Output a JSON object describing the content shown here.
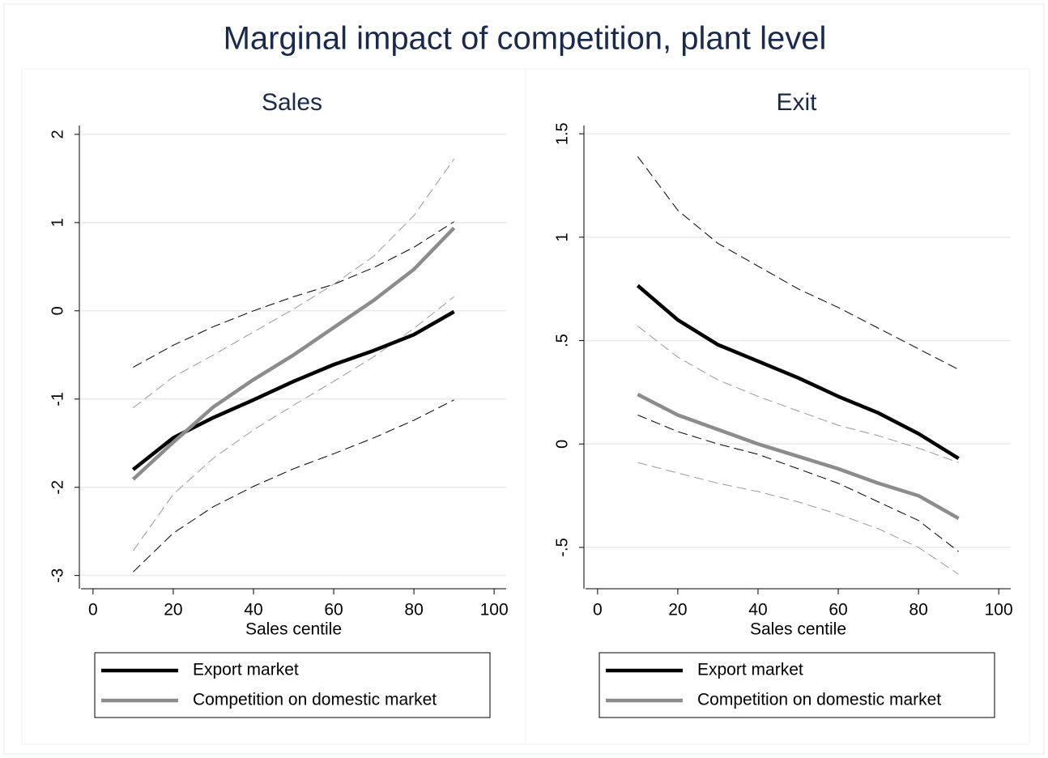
{
  "title": "Marginal impact of competition, plant level",
  "chart_data": [
    {
      "type": "line",
      "title": "Sales",
      "x_label": "Sales centile",
      "x": [
        10,
        20,
        30,
        40,
        50,
        60,
        70,
        80,
        90
      ],
      "xlim": [
        -3,
        103
      ],
      "xticks": [
        0,
        20,
        40,
        60,
        80,
        100
      ],
      "ylim": [
        -3.15,
        2.1
      ],
      "yticks": [
        -3,
        -2,
        -1,
        0,
        1,
        2
      ],
      "grid": true,
      "series": [
        {
          "color": "#000000",
          "dashed": true,
          "values": [
            -0.64,
            -0.39,
            -0.18,
            0.0,
            0.16,
            0.3,
            0.49,
            0.72,
            1.01
          ]
        },
        {
          "color": "#000000",
          "dashed": true,
          "values": [
            -2.96,
            -2.52,
            -2.22,
            -1.99,
            -1.79,
            -1.62,
            -1.44,
            -1.24,
            -1.01
          ]
        },
        {
          "color": "#999999",
          "dashed": true,
          "values": [
            -1.1,
            -0.75,
            -0.5,
            -0.24,
            0.02,
            0.3,
            0.62,
            1.08,
            1.72
          ]
        },
        {
          "color": "#999999",
          "dashed": true,
          "values": [
            -2.72,
            -2.08,
            -1.67,
            -1.35,
            -1.07,
            -0.8,
            -0.52,
            -0.2,
            0.16
          ]
        },
        {
          "name": "Export market",
          "color": "#000000",
          "dashed": false,
          "values": [
            -1.8,
            -1.44,
            -1.21,
            -1.01,
            -0.8,
            -0.61,
            -0.45,
            -0.27,
            -0.01
          ]
        },
        {
          "name": "Competition on domestic market",
          "color": "#8c8c8c",
          "dashed": false,
          "values": [
            -1.91,
            -1.49,
            -1.09,
            -0.78,
            -0.5,
            -0.19,
            0.12,
            0.47,
            0.94
          ]
        }
      ]
    },
    {
      "type": "line",
      "title": "Exit",
      "x_label": "Sales centile",
      "x": [
        10,
        20,
        30,
        40,
        50,
        60,
        70,
        80,
        90
      ],
      "xlim": [
        -3,
        103
      ],
      "xticks": [
        0,
        20,
        40,
        60,
        80,
        100
      ],
      "ylim": [
        -0.7,
        1.54
      ],
      "yticks": [
        {
          "value": -0.5,
          "label": "-.5"
        },
        0,
        {
          "value": 0.5,
          "label": ".5"
        },
        1,
        1.5
      ],
      "grid": true,
      "series": [
        {
          "color": "#000000",
          "dashed": true,
          "values": [
            1.39,
            1.13,
            0.97,
            0.86,
            0.75,
            0.66,
            0.56,
            0.46,
            0.36
          ]
        },
        {
          "color": "#000000",
          "dashed": true,
          "values": [
            0.14,
            0.06,
            0.0,
            -0.05,
            -0.12,
            -0.19,
            -0.28,
            -0.37,
            -0.52
          ]
        },
        {
          "color": "#999999",
          "dashed": true,
          "values": [
            0.57,
            0.42,
            0.31,
            0.23,
            0.16,
            0.09,
            0.04,
            -0.02,
            -0.09
          ]
        },
        {
          "color": "#999999",
          "dashed": true,
          "values": [
            -0.09,
            -0.14,
            -0.19,
            -0.23,
            -0.28,
            -0.34,
            -0.41,
            -0.5,
            -0.63
          ]
        },
        {
          "name": "Export market",
          "color": "#000000",
          "dashed": false,
          "values": [
            0.766,
            0.6,
            0.48,
            0.4,
            0.32,
            0.23,
            0.15,
            0.05,
            -0.07
          ]
        },
        {
          "name": "Competition on domestic market",
          "color": "#8c8c8c",
          "dashed": false,
          "values": [
            0.24,
            0.14,
            0.07,
            0.0,
            -0.06,
            -0.12,
            -0.19,
            -0.25,
            -0.36
          ]
        }
      ]
    }
  ]
}
